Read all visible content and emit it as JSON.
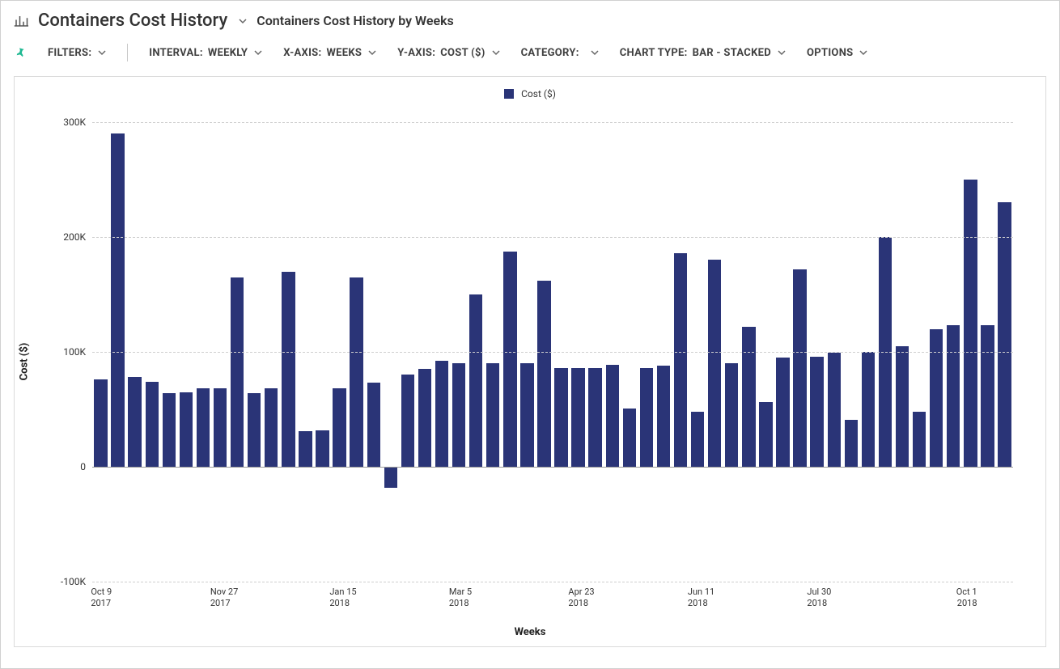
{
  "header": {
    "page_title": "Containers Cost History",
    "subtitle": "Containers Cost History by Weeks"
  },
  "toolbar": {
    "filters_label": "FILTERS:",
    "interval_label": "INTERVAL:",
    "interval_value": "WEEKLY",
    "xaxis_label": "X-AXIS:",
    "xaxis_value": "WEEKS",
    "yaxis_label": "Y-AXIS:",
    "yaxis_value": "COST ($)",
    "category_label": "CATEGORY:",
    "category_value": "",
    "charttype_label": "CHART TYPE:",
    "charttype_value": "BAR - STACKED",
    "options_label": "OPTIONS"
  },
  "chart": {
    "type": "bar",
    "legend_label": "Cost ($)",
    "bar_color": "#2a3477",
    "background_color": "#ffffff",
    "grid_color": "#cfcfcf",
    "zero_line_color": "#9a9a9a",
    "y_label": "Cost ($)",
    "x_label": "Weeks",
    "y_min": -100000,
    "y_max": 300000,
    "y_ticks": [
      {
        "v": -100000,
        "label": "-100K"
      },
      {
        "v": 0,
        "label": "0"
      },
      {
        "v": 100000,
        "label": "100K"
      },
      {
        "v": 200000,
        "label": "200K"
      },
      {
        "v": 300000,
        "label": "300K"
      }
    ],
    "x_ticks": [
      {
        "idx": 0,
        "line1": "Oct 9",
        "line2": "2017"
      },
      {
        "idx": 7,
        "line1": "Nov 27",
        "line2": "2017"
      },
      {
        "idx": 14,
        "line1": "Jan 15",
        "line2": "2018"
      },
      {
        "idx": 21,
        "line1": "Mar 5",
        "line2": "2018"
      },
      {
        "idx": 28,
        "line1": "Apr 23",
        "line2": "2018"
      },
      {
        "idx": 35,
        "line1": "Jun 11",
        "line2": "2018"
      },
      {
        "idx": 42,
        "line1": "Jul 30",
        "line2": "2018"
      },
      {
        "idx": 51,
        "line1": "Oct 1",
        "line2": "2018",
        "align": "right"
      }
    ],
    "bar_width_ratio": 0.78,
    "values": [
      76000,
      290000,
      78000,
      74000,
      64000,
      65000,
      68000,
      68000,
      165000,
      64000,
      68000,
      170000,
      31000,
      32000,
      68000,
      165000,
      73000,
      -18000,
      80000,
      85000,
      92000,
      90000,
      150000,
      90000,
      187000,
      90000,
      162000,
      86000,
      86000,
      86000,
      89000,
      51000,
      86000,
      88000,
      186000,
      48000,
      180000,
      90000,
      122000,
      56000,
      95000,
      172000,
      96000,
      99000,
      41000,
      100000,
      200000,
      105000,
      48000,
      120000,
      123000,
      250000,
      123000,
      230000
    ]
  }
}
